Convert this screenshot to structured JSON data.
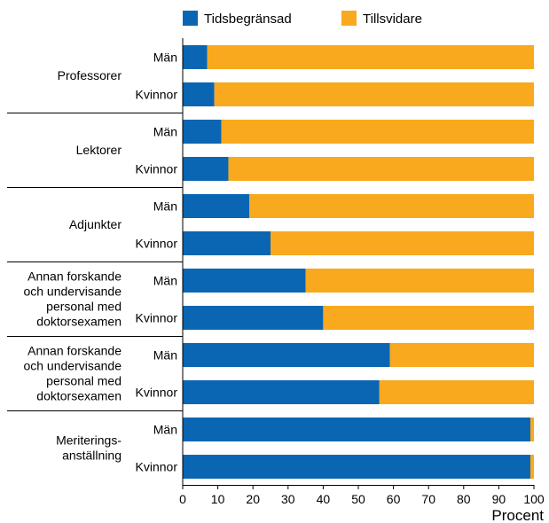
{
  "chart_data": {
    "type": "bar",
    "stacked": true,
    "orientation": "horizontal",
    "legend_position": "top",
    "series": [
      {
        "name": "Tidsbegränsad",
        "color": "#0a66b2",
        "values": [
          7,
          9,
          11,
          13,
          19,
          25,
          35,
          40,
          59,
          56,
          99,
          99
        ]
      },
      {
        "name": "Tillsvidare",
        "color": "#f8a91e",
        "values": [
          93,
          91,
          89,
          87,
          81,
          75,
          65,
          60,
          41,
          44,
          1,
          1
        ]
      }
    ],
    "groups": [
      {
        "label_lines": [
          "Professorer"
        ],
        "bars": [
          "Män",
          "Kvinnor"
        ]
      },
      {
        "label_lines": [
          "Lektorer"
        ],
        "bars": [
          "Män",
          "Kvinnor"
        ]
      },
      {
        "label_lines": [
          "Adjunkter"
        ],
        "bars": [
          "Män",
          "Kvinnor"
        ]
      },
      {
        "label_lines": [
          "Annan forskande",
          "och undervisande",
          "personal med",
          "doktorsexamen"
        ],
        "bars": [
          "Män",
          "Kvinnor"
        ]
      },
      {
        "label_lines": [
          "Annan forskande",
          "och undervisande",
          "personal med",
          "doktorsexamen"
        ],
        "bars": [
          "Män",
          "Kvinnor"
        ]
      },
      {
        "label_lines": [
          "Meriterings-",
          "anställning"
        ],
        "bars": [
          "Män",
          "Kvinnor"
        ]
      }
    ],
    "xlabel": "Procent",
    "xlim": [
      0,
      100
    ],
    "xticks": [
      0,
      10,
      20,
      30,
      40,
      50,
      60,
      70,
      80,
      90,
      100
    ]
  }
}
